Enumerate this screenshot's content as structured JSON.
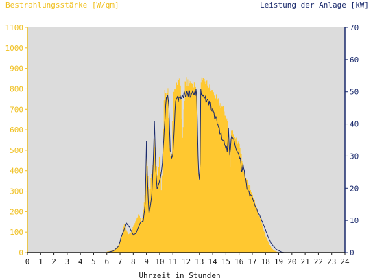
{
  "colors": {
    "left_axis": "#f0c020",
    "right_axis": "#1a2a6c",
    "plot_bg": "#dcdcdc",
    "area_fill": "#ffc830",
    "power_line": "#1a2a6c"
  },
  "chart_data": {
    "type": "area",
    "left_title": "Bestrahlungsstärke [W/qm]",
    "right_title": "Leistung der Anlage [kW]",
    "xlabel": "Uhrzeit in Stunden",
    "xlim": [
      0,
      24
    ],
    "y_left_lim": [
      0,
      1100
    ],
    "y_right_lim": [
      0,
      70
    ],
    "x_ticks": [
      "0",
      "1",
      "2",
      "3",
      "4",
      "5",
      "6",
      "7",
      "8",
      "9",
      "10",
      "11",
      "12",
      "13",
      "14",
      "15",
      "16",
      "17",
      "18",
      "19",
      "20",
      "21",
      "22",
      "23",
      "24"
    ],
    "y_left_ticks": [
      "0",
      "100",
      "200",
      "300",
      "400",
      "500",
      "600",
      "700",
      "800",
      "900",
      "1000",
      "1100"
    ],
    "y_right_ticks": [
      "0",
      "10",
      "20",
      "30",
      "40",
      "50",
      "60",
      "70"
    ],
    "grid": false,
    "series": [
      {
        "name": "Bestrahlungsstärke [W/qm]",
        "axis": "left",
        "x": [
          0,
          5.9,
          6.0,
          6.3,
          6.6,
          6.9,
          7.1,
          7.3,
          7.45,
          7.6,
          7.8,
          8.0,
          8.2,
          8.4,
          8.6,
          8.75,
          8.9,
          9.0,
          9.1,
          9.2,
          9.3,
          9.5,
          9.6,
          9.7,
          9.8,
          9.9,
          10.0,
          10.1,
          10.2,
          10.3,
          10.4,
          10.5,
          10.6,
          10.7,
          10.8,
          10.9,
          11.0,
          11.2,
          11.3,
          11.4,
          11.5,
          11.6,
          11.7,
          11.8,
          11.9,
          12.0,
          12.2,
          12.4,
          12.6,
          12.8,
          12.9,
          12.95,
          13.0,
          13.05,
          13.1,
          13.2,
          13.4,
          13.6,
          13.8,
          14.0,
          14.2,
          14.4,
          14.6,
          14.8,
          15.0,
          15.1,
          15.2,
          15.3,
          15.4,
          15.6,
          15.8,
          16.0,
          16.1,
          16.2,
          16.3,
          16.4,
          16.6,
          16.8,
          17.0,
          17.2,
          17.4,
          17.6,
          17.8,
          18.0,
          18.2,
          18.4,
          18.6,
          18.8,
          19.0,
          19.2,
          19.4,
          19.6,
          19.8,
          20.0,
          20.2,
          24
        ],
        "values": [
          0,
          0,
          5,
          8,
          15,
          40,
          80,
          140,
          110,
          90,
          100,
          130,
          160,
          190,
          150,
          210,
          320,
          460,
          380,
          250,
          360,
          450,
          560,
          460,
          380,
          420,
          500,
          300,
          470,
          760,
          790,
          760,
          800,
          540,
          460,
          470,
          800,
          820,
          830,
          845,
          840,
          760,
          550,
          700,
          820,
          840,
          820,
          840,
          820,
          780,
          380,
          360,
          390,
          760,
          850,
          830,
          840,
          820,
          800,
          780,
          760,
          740,
          720,
          700,
          660,
          640,
          580,
          420,
          610,
          580,
          550,
          520,
          480,
          460,
          400,
          380,
          360,
          320,
          280,
          240,
          200,
          160,
          120,
          80,
          50,
          25,
          10,
          5,
          0,
          0,
          0,
          0,
          0,
          0,
          0,
          0
        ],
        "fill_mode": "stepped-with-noise"
      },
      {
        "name": "Leistung der Anlage [kW]",
        "axis": "right",
        "x": [
          0,
          6.0,
          6.5,
          6.9,
          7.1,
          7.3,
          7.5,
          7.7,
          8.0,
          8.2,
          8.5,
          8.75,
          8.9,
          9.0,
          9.1,
          9.2,
          9.4,
          9.5,
          9.6,
          9.7,
          9.8,
          10.0,
          10.1,
          10.2,
          10.3,
          10.5,
          10.6,
          10.7,
          10.8,
          10.9,
          11.0,
          11.2,
          11.4,
          11.6,
          11.8,
          12.0,
          12.5,
          12.8,
          12.9,
          12.95,
          13.0,
          13.05,
          13.1,
          13.2,
          13.4,
          13.6,
          13.8,
          14.0,
          14.2,
          14.4,
          14.6,
          14.8,
          15.0,
          15.1,
          15.2,
          15.3,
          15.4,
          15.6,
          15.8,
          16.0,
          16.1,
          16.2,
          16.3,
          16.4,
          16.6,
          16.8,
          17.0,
          17.2,
          17.4,
          17.6,
          17.8,
          18.0,
          18.2,
          18.4,
          18.6,
          18.8,
          19.0,
          19.2,
          19.4,
          19.6,
          19.8,
          20.0,
          24
        ],
        "values": [
          0,
          0,
          0.5,
          2,
          5,
          7,
          9,
          8,
          5.5,
          6,
          9,
          10,
          15,
          34,
          20,
          12,
          18,
          28,
          40,
          26,
          20,
          22,
          24,
          28,
          35,
          48,
          49,
          44,
          32,
          30,
          30,
          47,
          48,
          48.6,
          49,
          49.5,
          49.5,
          49.8,
          30,
          25,
          23,
          28,
          50.5,
          49,
          48,
          47,
          46,
          44,
          42,
          40,
          37,
          35,
          33,
          32,
          38,
          30,
          36,
          35,
          32,
          30,
          29,
          25,
          27,
          25,
          20,
          18,
          17,
          15,
          13,
          11,
          9,
          7,
          5,
          3,
          2,
          1,
          0.6,
          0.2,
          0,
          0,
          0,
          0,
          0
        ],
        "line_mode": "jagged"
      }
    ]
  }
}
